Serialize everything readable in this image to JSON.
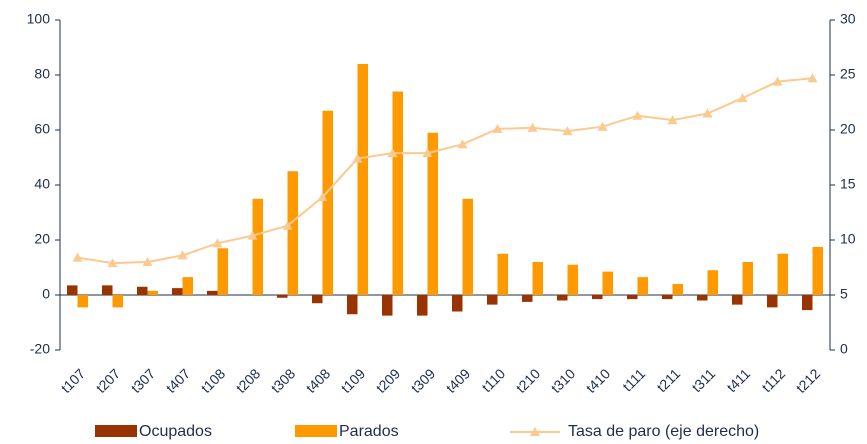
{
  "chart_data": {
    "type": "bar",
    "categories": [
      "t107",
      "t207",
      "t307",
      "t407",
      "t108",
      "t208",
      "t308",
      "t408",
      "t109",
      "t209",
      "t309",
      "t409",
      "t110",
      "t210",
      "t310",
      "t410",
      "t111",
      "t211",
      "t311",
      "t411",
      "t112",
      "t212"
    ],
    "series": [
      {
        "name": "Ocupados",
        "type": "bar",
        "color": "#993300",
        "values": [
          3.5,
          3.5,
          3,
          2.5,
          1.5,
          0,
          -1,
          -3,
          -7,
          -7.5,
          -7.5,
          -6,
          -3.5,
          -2.5,
          -2,
          -1.5,
          -1.5,
          -1.5,
          -2,
          -3.5,
          -4.5,
          -5.5
        ]
      },
      {
        "name": "Parados",
        "type": "bar",
        "color": "#ff9900",
        "values": [
          -4.5,
          -4.5,
          1.5,
          6.5,
          17,
          35,
          45,
          67,
          84,
          74,
          59,
          35,
          15,
          12,
          11,
          8.5,
          6.5,
          4,
          9,
          12,
          15,
          17.5
        ]
      },
      {
        "name": "Tasa de paro (eje derecho)",
        "type": "line",
        "axis": "y2",
        "color": "#fcc98f",
        "values": [
          8.4,
          7.9,
          8.0,
          8.6,
          9.7,
          10.4,
          11.3,
          13.9,
          17.4,
          17.9,
          17.9,
          18.7,
          20.1,
          20.2,
          19.9,
          20.3,
          21.3,
          20.9,
          21.5,
          22.9,
          24.4,
          24.7
        ]
      }
    ],
    "ylim": [
      -20,
      100
    ],
    "yticks": [
      -20,
      0,
      20,
      40,
      60,
      80,
      100
    ],
    "y2lim": [
      0,
      30
    ],
    "y2ticks": [
      0,
      5,
      10,
      15,
      20,
      25,
      30
    ]
  }
}
